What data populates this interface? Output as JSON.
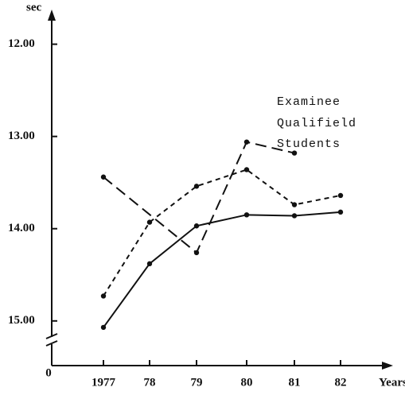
{
  "chart_data": {
    "type": "line",
    "y_label": "sec",
    "x_label": "Years",
    "origin_label": "0",
    "categories": [
      "1977",
      "78",
      "79",
      "80",
      "81",
      "82"
    ],
    "y_inverted": true,
    "ylim": [
      11.65,
      15.2
    ],
    "yticks": [
      {
        "value": 12,
        "label": "12.00"
      },
      {
        "value": 13,
        "label": "13.00"
      },
      {
        "value": 14,
        "label": "14.00"
      },
      {
        "value": 15,
        "label": "15.00"
      }
    ],
    "axis_break": true,
    "series": [
      {
        "name": "Examinee",
        "color": "#111111",
        "style": "long-dash",
        "x": [
          "1977",
          "79",
          "80",
          "81"
        ],
        "values": [
          13.44,
          14.26,
          13.06,
          13.18
        ]
      },
      {
        "name": "Qualifield",
        "color": "#111111",
        "style": "short-dash",
        "values": [
          14.73,
          13.93,
          13.54,
          13.36,
          13.74,
          13.64
        ]
      },
      {
        "name": "Students",
        "color": "#111111",
        "style": "solid",
        "values": [
          15.07,
          14.38,
          13.97,
          13.85,
          13.86,
          13.82
        ]
      }
    ]
  }
}
